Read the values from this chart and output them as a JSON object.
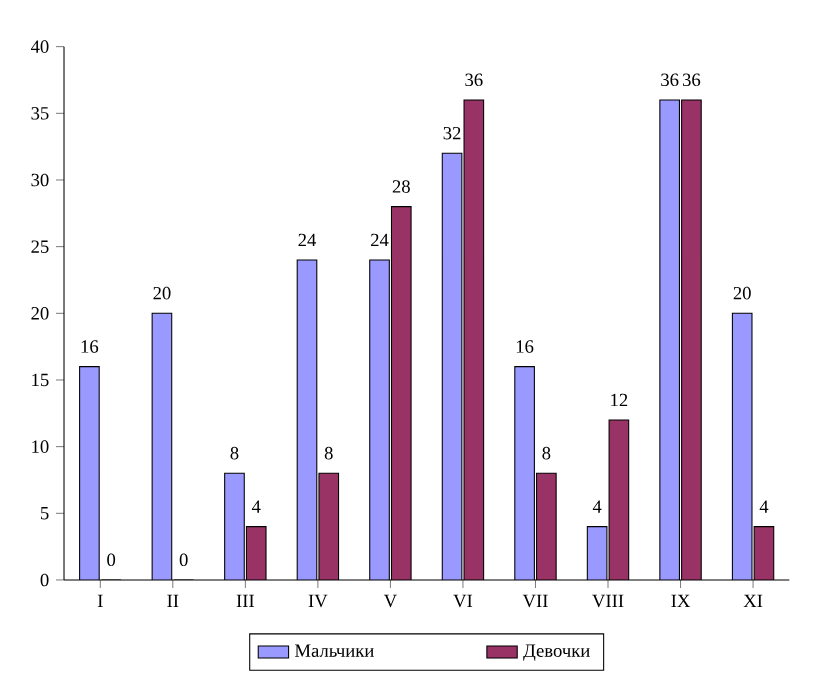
{
  "chart_data": {
    "type": "bar",
    "categories": [
      "I",
      "II",
      "III",
      "IV",
      "V",
      "VI",
      "VII",
      "VIII",
      "IX",
      "XI"
    ],
    "series": [
      {
        "name": "Мальчики",
        "color": "#9999ff",
        "values": [
          16,
          20,
          8,
          24,
          24,
          32,
          16,
          4,
          36,
          20
        ]
      },
      {
        "name": "Девочки",
        "color": "#993366",
        "values": [
          0,
          0,
          4,
          8,
          28,
          36,
          8,
          12,
          36,
          4
        ]
      }
    ],
    "ylim": [
      0,
      40
    ],
    "yticks": [
      0,
      5,
      10,
      15,
      20,
      25,
      30,
      35,
      40
    ],
    "grid": false,
    "legend": "bottom",
    "data_labels": true
  }
}
